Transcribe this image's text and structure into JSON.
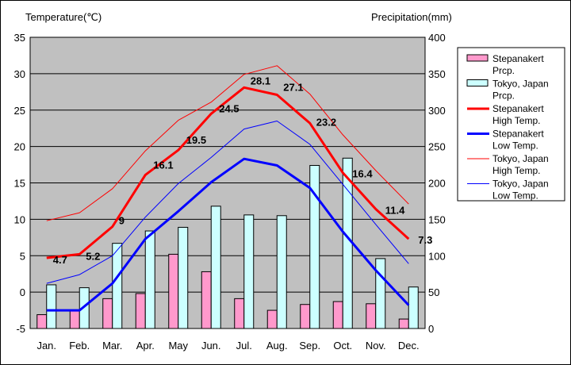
{
  "chart_data": {
    "type": "bar+line",
    "title": "",
    "y_left_label": "Temperature(℃)",
    "y_right_label": "Precipitation(mm)",
    "categories": [
      "Jan.",
      "Feb.",
      "Mar.",
      "Apr.",
      "May",
      "Jun.",
      "Jul.",
      "Aug.",
      "Sep.",
      "Oct.",
      "Nov.",
      "Dec."
    ],
    "y_left_range": [
      -5,
      35
    ],
    "y_left_ticks": [
      "-5",
      "0",
      "5",
      "10",
      "15",
      "20",
      "25",
      "30",
      "35"
    ],
    "y_right_range": [
      0,
      400
    ],
    "y_right_ticks": [
      "0",
      "50",
      "100",
      "150",
      "200",
      "250",
      "300",
      "350",
      "400"
    ],
    "grid": "horizontal",
    "legend_position": "right",
    "series": [
      {
        "name": "Stepanakert Prcp.",
        "kind": "bar",
        "axis": "right",
        "color": "#ff99cc",
        "values": [
          19,
          24,
          41,
          48,
          102,
          78,
          41,
          25,
          33,
          37,
          34,
          13
        ]
      },
      {
        "name": "Tokyo, Japan Prcp.",
        "kind": "bar",
        "axis": "right",
        "color": "#ccffff",
        "values": [
          60,
          56,
          117,
          134,
          139,
          168,
          156,
          155,
          224,
          234,
          96,
          57
        ]
      },
      {
        "name": "Stepanakert High Temp.",
        "kind": "line",
        "axis": "left",
        "color": "#ff0000",
        "width": 3,
        "values": [
          4.7,
          5.2,
          9,
          16.1,
          19.5,
          24.5,
          28.1,
          27.1,
          23.2,
          16.4,
          11.4,
          7.3
        ],
        "labels": [
          "4.7",
          "5.2",
          "9",
          "16.1",
          "19.5",
          "24.5",
          "28.1",
          "27.1",
          "23.2",
          "16.4",
          "11.4",
          "7.3"
        ]
      },
      {
        "name": "Stepanakert Low Temp.",
        "kind": "line",
        "axis": "left",
        "color": "#0000ff",
        "width": 3,
        "values": [
          -2.5,
          -2.5,
          1.2,
          7.3,
          11.1,
          15.1,
          18.3,
          17.4,
          14.3,
          8.3,
          3,
          -1.8
        ]
      },
      {
        "name": "Tokyo, Japan High Temp.",
        "kind": "line",
        "axis": "left",
        "color": "#ff0000",
        "width": 1,
        "values": [
          9.8,
          10.9,
          14.2,
          19.4,
          23.6,
          26.1,
          29.9,
          31.1,
          27.2,
          21.6,
          16.7,
          12.1
        ]
      },
      {
        "name": "Tokyo, Japan Low Temp.",
        "kind": "line",
        "axis": "left",
        "color": "#0000ff",
        "width": 1,
        "values": [
          1.2,
          2.4,
          5,
          10.3,
          14.9,
          18.5,
          22.4,
          23.5,
          20.3,
          14.8,
          9.3,
          3.9
        ]
      }
    ]
  },
  "legend": [
    {
      "line1": "Stepanakert",
      "line2": "Prcp.",
      "swatch": "bar",
      "color": "#ff99cc"
    },
    {
      "line1": "Tokyo, Japan",
      "line2": "Prcp.",
      "swatch": "bar",
      "color": "#ccffff"
    },
    {
      "line1": "Stepanakert",
      "line2": "High Temp.",
      "swatch": "thick-line",
      "color": "#ff0000"
    },
    {
      "line1": "Stepanakert",
      "line2": "Low Temp.",
      "swatch": "thick-line",
      "color": "#0000ff"
    },
    {
      "line1": "Tokyo, Japan",
      "line2": "High Temp.",
      "swatch": "thin-line",
      "color": "#ff0000"
    },
    {
      "line1": "Tokyo, Japan",
      "line2": "Low Temp.",
      "swatch": "thin-line",
      "color": "#0000ff"
    }
  ],
  "colors": {
    "plot_background": "#c0c0c0",
    "page_background": "#ffffff"
  }
}
